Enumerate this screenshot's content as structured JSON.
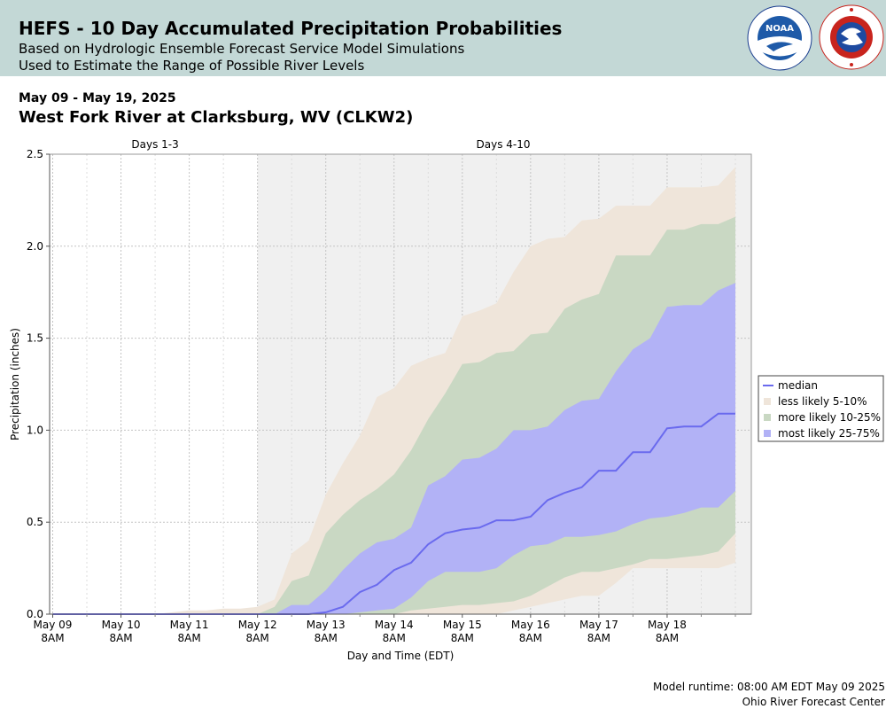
{
  "header": {
    "title": "HEFS - 10 Day Accumulated Precipitation Probabilities",
    "subtitle1": "Based on Hydrologic Ensemble Forecast Service Model Simulations",
    "subtitle2": "Used to Estimate the Range of Possible River Levels",
    "noaa_logo_text": "NOAA",
    "nws_logo_text": "NATIONAL WEATHER SERVICE"
  },
  "date_range": "May 09 - May 19, 2025",
  "station": "West Fork River at Clarksburg, WV (CLKW2)",
  "footer": {
    "runtime": "Model runtime: 08:00 AM EDT May 09 2025",
    "center": "Ohio River Forecast Center"
  },
  "colors": {
    "median": "#6a6aee",
    "less_likely": "#efe5da",
    "more_likely": "#c9d8c3",
    "most_likely": "#b2b2f6",
    "days4_bg": "#f0f0f0"
  },
  "chart_data": {
    "type": "area",
    "xlabel": "Day and Time (EDT)",
    "ylabel": "Precipitation (inches)",
    "ylim": [
      0,
      2.5
    ],
    "xlim": [
      0,
      10.2
    ],
    "yticks": [
      "0.0",
      "0.5",
      "1.0",
      "1.5",
      "2.0",
      "2.5"
    ],
    "xticks": [
      {
        "x": 0,
        "line1": "May 09",
        "line2": "8AM"
      },
      {
        "x": 1,
        "line1": "May 10",
        "line2": "8AM"
      },
      {
        "x": 2,
        "line1": "May 11",
        "line2": "8AM"
      },
      {
        "x": 3,
        "line1": "May 12",
        "line2": "8AM"
      },
      {
        "x": 4,
        "line1": "May 13",
        "line2": "8AM"
      },
      {
        "x": 5,
        "line1": "May 14",
        "line2": "8AM"
      },
      {
        "x": 6,
        "line1": "May 15",
        "line2": "8AM"
      },
      {
        "x": 7,
        "line1": "May 16",
        "line2": "8AM"
      },
      {
        "x": 8,
        "line1": "May 17",
        "line2": "8AM"
      },
      {
        "x": 9,
        "line1": "May 18",
        "line2": "8AM"
      }
    ],
    "regions": [
      {
        "label": "Days 1-3",
        "x_start": 0,
        "x_end": 3
      },
      {
        "label": "Days 4-10",
        "x_start": 3,
        "x_end": 10.2
      }
    ],
    "grid": true,
    "legend_position": "right",
    "legend": [
      "median",
      "less likely 5-10%",
      "more likely 10-25%",
      "most likely 25-75%"
    ],
    "x": [
      0,
      0.25,
      0.5,
      0.75,
      1,
      1.25,
      1.5,
      1.75,
      2,
      2.25,
      2.5,
      2.75,
      3,
      3.25,
      3.5,
      3.75,
      4,
      4.25,
      4.5,
      4.75,
      5,
      5.25,
      5.5,
      5.75,
      6,
      6.25,
      6.5,
      6.75,
      7,
      7.25,
      7.5,
      7.75,
      8,
      8.25,
      8.5,
      8.75,
      9,
      9.25,
      9.5,
      9.75,
      10
    ],
    "series": [
      {
        "name": "less likely 5-10%",
        "lower": [
          0,
          0,
          0,
          0,
          0,
          0,
          0,
          0,
          0,
          0,
          0,
          0,
          0,
          0,
          0,
          0,
          0,
          0,
          0,
          0,
          0,
          0,
          0,
          0,
          0,
          0,
          0,
          0.02,
          0.04,
          0.06,
          0.08,
          0.1,
          0.1,
          0.17,
          0.25,
          0.25,
          0.25,
          0.25,
          0.25,
          0.25,
          0.28
        ],
        "upper": [
          0,
          0,
          0,
          0,
          0,
          0,
          0,
          0.01,
          0.02,
          0.02,
          0.03,
          0.03,
          0.04,
          0.08,
          0.33,
          0.4,
          0.65,
          0.82,
          0.97,
          1.18,
          1.23,
          1.35,
          1.39,
          1.42,
          1.62,
          1.65,
          1.69,
          1.86,
          2.0,
          2.04,
          2.05,
          2.14,
          2.15,
          2.22,
          2.22,
          2.22,
          2.32,
          2.32,
          2.32,
          2.33,
          2.43
        ]
      },
      {
        "name": "more likely 10-25%",
        "lower": [
          0,
          0,
          0,
          0,
          0,
          0,
          0,
          0,
          0,
          0,
          0,
          0,
          0,
          0,
          0,
          0,
          0,
          0,
          0,
          0,
          0,
          0.02,
          0.03,
          0.04,
          0.05,
          0.05,
          0.06,
          0.07,
          0.1,
          0.15,
          0.2,
          0.23,
          0.23,
          0.25,
          0.27,
          0.3,
          0.3,
          0.31,
          0.32,
          0.34,
          0.44
        ],
        "upper": [
          0,
          0,
          0,
          0,
          0,
          0,
          0,
          0,
          0,
          0,
          0,
          0,
          0,
          0.04,
          0.18,
          0.21,
          0.44,
          0.54,
          0.62,
          0.68,
          0.76,
          0.89,
          1.06,
          1.2,
          1.36,
          1.37,
          1.42,
          1.43,
          1.52,
          1.53,
          1.66,
          1.71,
          1.74,
          1.95,
          1.95,
          1.95,
          2.09,
          2.09,
          2.12,
          2.12,
          2.16
        ]
      },
      {
        "name": "most likely 25-75%",
        "lower": [
          0,
          0,
          0,
          0,
          0,
          0,
          0,
          0,
          0,
          0,
          0,
          0,
          0,
          0,
          0,
          0,
          0,
          0,
          0.01,
          0.02,
          0.03,
          0.09,
          0.18,
          0.23,
          0.23,
          0.23,
          0.25,
          0.32,
          0.37,
          0.38,
          0.42,
          0.42,
          0.43,
          0.45,
          0.49,
          0.52,
          0.53,
          0.55,
          0.58,
          0.58,
          0.67
        ],
        "upper": [
          0,
          0,
          0,
          0,
          0,
          0,
          0,
          0,
          0,
          0,
          0,
          0,
          0,
          0,
          0.05,
          0.05,
          0.13,
          0.24,
          0.33,
          0.39,
          0.41,
          0.47,
          0.7,
          0.75,
          0.84,
          0.85,
          0.9,
          1.0,
          1.0,
          1.02,
          1.11,
          1.16,
          1.17,
          1.32,
          1.44,
          1.5,
          1.67,
          1.68,
          1.68,
          1.76,
          1.8
        ]
      },
      {
        "name": "median",
        "values": [
          0,
          0,
          0,
          0,
          0,
          0,
          0,
          0,
          0,
          0,
          0,
          0,
          0,
          0,
          0,
          0,
          0.01,
          0.04,
          0.12,
          0.16,
          0.24,
          0.28,
          0.38,
          0.44,
          0.46,
          0.47,
          0.51,
          0.51,
          0.53,
          0.62,
          0.66,
          0.69,
          0.78,
          0.78,
          0.88,
          0.88,
          1.01,
          1.02,
          1.02,
          1.09,
          1.09
        ]
      }
    ]
  }
}
